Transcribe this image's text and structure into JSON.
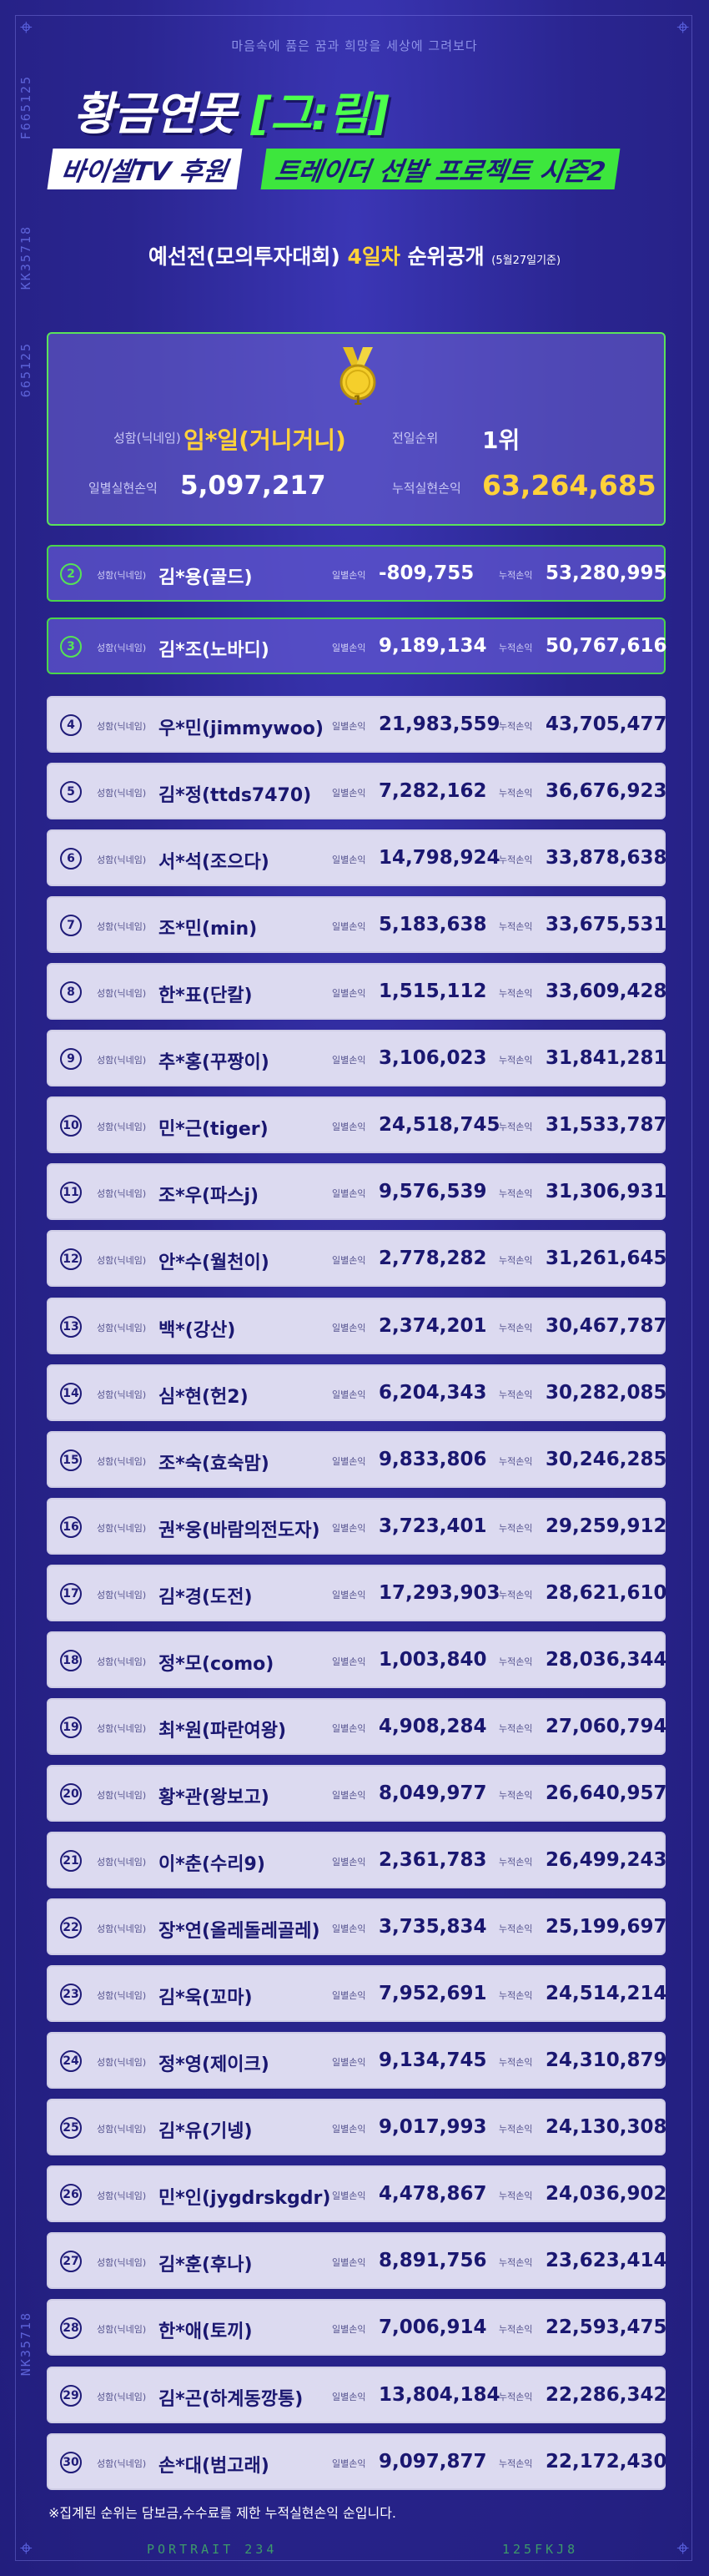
{
  "header": {
    "tagline": "마음속에 품은 꿈과 희망을 세상에 그려보다",
    "title": "황금연못",
    "title_bracket": "[그:림]",
    "sub_left": "바이셀TV 후원",
    "sub_right": "트레이더 선발 프로젝트 시즌2",
    "heading_pre": "예선전(모의투자대회) ",
    "heading_highlight": "4일차",
    "heading_post": " 순위공개 ",
    "heading_date": "(5월27일기준)"
  },
  "side_codes": {
    "left_top": "F665125",
    "left_mid": "KK35718",
    "left_mid2": "665125",
    "left_bottom": "NK35718",
    "bottom_left": "PORTRAIT 234",
    "bottom_right": "125FKJ8"
  },
  "labels": {
    "name": "성함(닉네임)",
    "prev_rank": "전일순위",
    "daily_long": "일별실현손익",
    "cum_long": "누적실현손익",
    "daily_short": "일별손익",
    "cum_short": "누적손익"
  },
  "winner": {
    "rank": "1",
    "name": "임*일(거니거니)",
    "prev_rank_value": "1위",
    "daily": "5,097,217",
    "cumulative": "63,264,685"
  },
  "rankings": [
    {
      "rank": "2",
      "name": "김*용(골드)",
      "daily": "-809,755",
      "cumulative": "53,280,995"
    },
    {
      "rank": "3",
      "name": "김*조(노바디)",
      "daily": "9,189,134",
      "cumulative": "50,767,616"
    },
    {
      "rank": "4",
      "name": "우*민(jimmywoo)",
      "daily": "21,983,559",
      "cumulative": "43,705,477"
    },
    {
      "rank": "5",
      "name": "김*정(ttds7470)",
      "daily": "7,282,162",
      "cumulative": "36,676,923"
    },
    {
      "rank": "6",
      "name": "서*석(조으다)",
      "daily": "14,798,924",
      "cumulative": "33,878,638"
    },
    {
      "rank": "7",
      "name": "조*민(min)",
      "daily": "5,183,638",
      "cumulative": "33,675,531"
    },
    {
      "rank": "8",
      "name": "한*표(단칼)",
      "daily": "1,515,112",
      "cumulative": "33,609,428"
    },
    {
      "rank": "9",
      "name": "추*홍(꾸짱이)",
      "daily": "3,106,023",
      "cumulative": "31,841,281"
    },
    {
      "rank": "10",
      "name": "민*근(tiger)",
      "daily": "24,518,745",
      "cumulative": "31,533,787"
    },
    {
      "rank": "11",
      "name": "조*우(파스j)",
      "daily": "9,576,539",
      "cumulative": "31,306,931"
    },
    {
      "rank": "12",
      "name": "안*수(월천이)",
      "daily": "2,778,282",
      "cumulative": "31,261,645"
    },
    {
      "rank": "13",
      "name": "백*(강산)",
      "daily": "2,374,201",
      "cumulative": "30,467,787"
    },
    {
      "rank": "14",
      "name": "심*현(헌2)",
      "daily": "6,204,343",
      "cumulative": "30,282,085"
    },
    {
      "rank": "15",
      "name": "조*숙(효숙맘)",
      "daily": "9,833,806",
      "cumulative": "30,246,285"
    },
    {
      "rank": "16",
      "name": "권*웅(바람의전도자)",
      "daily": "3,723,401",
      "cumulative": "29,259,912"
    },
    {
      "rank": "17",
      "name": "김*경(도전)",
      "daily": "17,293,903",
      "cumulative": "28,621,610"
    },
    {
      "rank": "18",
      "name": "정*모(como)",
      "daily": "1,003,840",
      "cumulative": "28,036,344"
    },
    {
      "rank": "19",
      "name": "최*원(파란여왕)",
      "daily": "4,908,284",
      "cumulative": "27,060,794"
    },
    {
      "rank": "20",
      "name": "황*관(왕보고)",
      "daily": "8,049,977",
      "cumulative": "26,640,957"
    },
    {
      "rank": "21",
      "name": "이*춘(수리9)",
      "daily": "2,361,783",
      "cumulative": "26,499,243"
    },
    {
      "rank": "22",
      "name": "장*연(올레돌레골레)",
      "daily": "3,735,834",
      "cumulative": "25,199,697"
    },
    {
      "rank": "23",
      "name": "김*욱(꼬마)",
      "daily": "7,952,691",
      "cumulative": "24,514,214"
    },
    {
      "rank": "24",
      "name": "정*영(제이크)",
      "daily": "9,134,745",
      "cumulative": "24,310,879"
    },
    {
      "rank": "25",
      "name": "김*유(기넹)",
      "daily": "9,017,993",
      "cumulative": "24,130,308"
    },
    {
      "rank": "26",
      "name": "민*인(jygdrskgdr)",
      "daily": "4,478,867",
      "cumulative": "24,036,902"
    },
    {
      "rank": "27",
      "name": "김*훈(후나)",
      "daily": "8,891,756",
      "cumulative": "23,623,414"
    },
    {
      "rank": "28",
      "name": "한*애(토끼)",
      "daily": "7,006,914",
      "cumulative": "22,593,475"
    },
    {
      "rank": "29",
      "name": "김*곤(하계동깡통)",
      "daily": "13,804,184",
      "cumulative": "22,286,342"
    },
    {
      "rank": "30",
      "name": "손*대(범고래)",
      "daily": "9,097,877",
      "cumulative": "22,172,430"
    }
  ],
  "footnote": "※집계된 순위는 담보금,수수료를 제한 누적실현손익 순입니다.",
  "colors": {
    "background": "#2a2590",
    "accent_green": "#4cff4c",
    "highlight_yellow": "#ffd23a",
    "row_light": "#dcdaf0",
    "text_dark": "#1a1770"
  }
}
